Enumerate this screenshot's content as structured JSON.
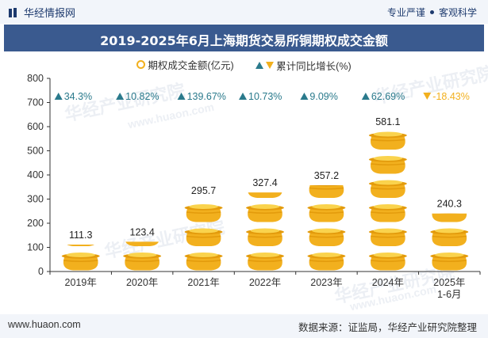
{
  "header": {
    "brand": "华经情报网",
    "tag_left": "专业严谨",
    "tag_right": "客观科学"
  },
  "title": "2019-2025年6月上海期货交易所铜期权成交金额",
  "legend": {
    "bar_label": "期权成交金额(亿元)",
    "growth_label": "累计同比增长(%)"
  },
  "watermark": {
    "text": "华经产业研究院",
    "url": "www.huaon.com"
  },
  "footer": {
    "site": "www.huaon.com",
    "source": "数据来源：证监局，华经产业研究院整理"
  },
  "colors": {
    "coin": "#f2b01e",
    "coin_shade": "#e39b0c",
    "up": "#2a7a8c",
    "down": "#f2b01e",
    "axis": "#333333"
  },
  "chart_data": {
    "type": "bar",
    "categories": [
      "2019年",
      "2020年",
      "2021年",
      "2022年",
      "2023年",
      "2024年",
      "2025年\n1-6月"
    ],
    "series": [
      {
        "name": "期权成交金额(亿元)",
        "values": [
          111.3,
          123.4,
          295.7,
          327.4,
          357.2,
          581.1,
          240.3
        ]
      },
      {
        "name": "累计同比增长(%)",
        "values": [
          34.3,
          10.82,
          139.67,
          10.73,
          9.09,
          62.69,
          -18.43
        ]
      }
    ],
    "value_labels": [
      "111.3",
      "123.4",
      "295.7",
      "327.4",
      "357.2",
      "581.1",
      "240.3"
    ],
    "growth_labels": [
      "34.3%",
      "10.82%",
      "139.67%",
      "10.73%",
      "9.09%",
      "62.69%",
      "-18.43%"
    ],
    "ylim": [
      0,
      800
    ],
    "yticks": [
      0,
      100,
      200,
      300,
      400,
      500,
      600,
      700,
      800
    ],
    "grid": false
  }
}
